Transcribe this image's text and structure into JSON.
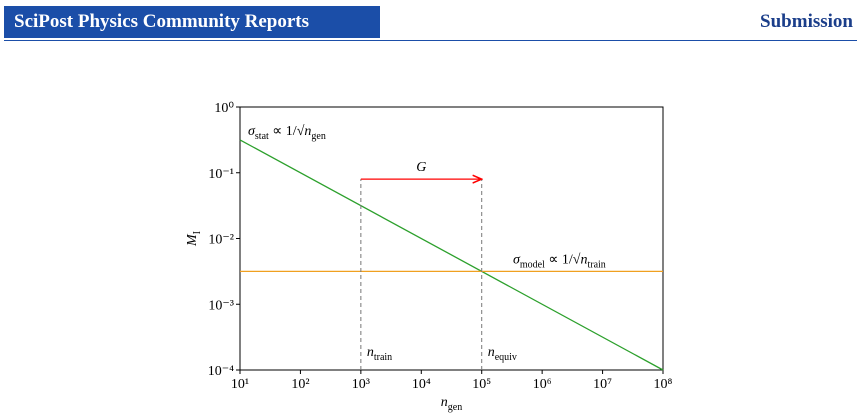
{
  "header": {
    "journal": "SciPost Physics Community Reports",
    "status": "Submission"
  },
  "chart_data": {
    "type": "line",
    "xscale": "log",
    "yscale": "log",
    "xlim": [
      10,
      100000000
    ],
    "ylim": [
      0.0001,
      1
    ],
    "xticks": [
      {
        "value": 10,
        "label": "10¹"
      },
      {
        "value": 100,
        "label": "10²"
      },
      {
        "value": 1000,
        "label": "10³"
      },
      {
        "value": 10000,
        "label": "10⁴"
      },
      {
        "value": 100000,
        "label": "10⁵"
      },
      {
        "value": 1000000,
        "label": "10⁶"
      },
      {
        "value": 10000000,
        "label": "10⁷"
      },
      {
        "value": 100000000,
        "label": "10⁸"
      }
    ],
    "yticks": [
      {
        "value": 0.0001,
        "label": "10⁻⁴"
      },
      {
        "value": 0.001,
        "label": "10⁻³"
      },
      {
        "value": 0.01,
        "label": "10⁻²"
      },
      {
        "value": 0.1,
        "label": "10⁻¹"
      },
      {
        "value": 1,
        "label": "10⁰"
      }
    ],
    "xlabel": [
      {
        "t": "n"
      },
      {
        "sub": "gen"
      }
    ],
    "ylabel": [
      {
        "t": "M"
      },
      {
        "sub": "I"
      }
    ],
    "series": [
      {
        "color": "#2ca02c",
        "x": [
          10,
          100000000
        ],
        "values": [
          0.316,
          0.0001
        ],
        "annotation": [
          {
            "t": "σ"
          },
          {
            "sub": "stat"
          },
          {
            "t": " ∝ 1/√"
          },
          {
            "t": "n"
          },
          {
            "sub": "gen"
          }
        ]
      },
      {
        "color": "#f0a020",
        "x": [
          10,
          100000000
        ],
        "values": [
          0.00316,
          0.00316
        ],
        "annotation": [
          {
            "t": "σ"
          },
          {
            "sub": "model"
          },
          {
            "t": " ∝ 1/√"
          },
          {
            "t": "n"
          },
          {
            "sub": "train"
          }
        ]
      }
    ],
    "arrow": {
      "label": "G",
      "from": 1000,
      "to": 100000,
      "y": 0.08,
      "color": "#ff0000"
    },
    "vlines": [
      {
        "x": 1000,
        "label": [
          {
            "t": "n"
          },
          {
            "sub": "train"
          }
        ]
      },
      {
        "x": 100000,
        "label": [
          {
            "t": "n"
          },
          {
            "sub": "equiv"
          }
        ]
      }
    ]
  }
}
